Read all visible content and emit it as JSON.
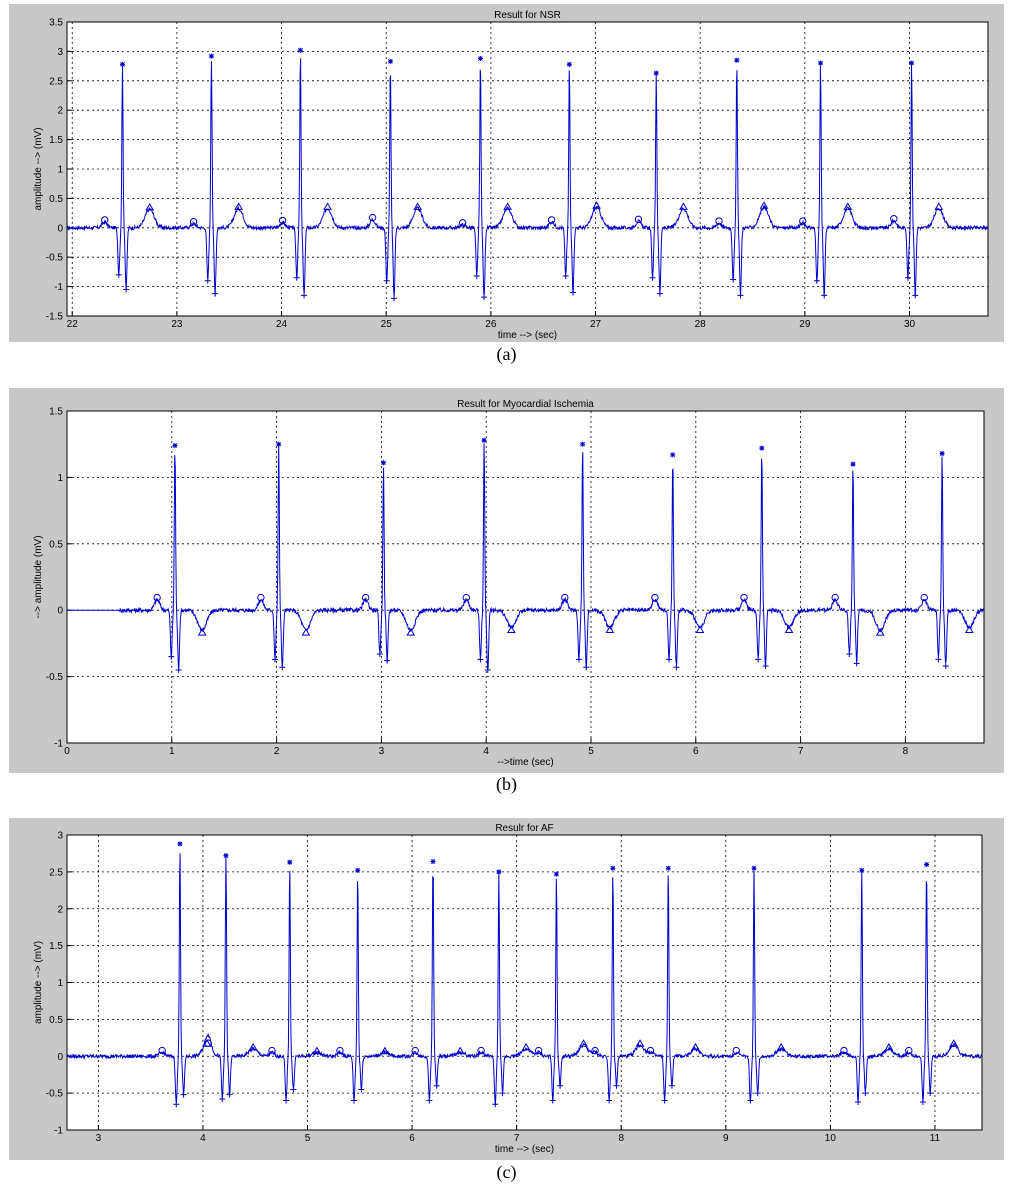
{
  "chart_data": [
    {
      "type": "line",
      "title": "Result for NSR",
      "xlabel": "time --> (sec)",
      "ylabel": "amplitude --> (mV)",
      "caption": "(a)",
      "xlim": [
        21.95,
        30.75
      ],
      "ylim": [
        -1.5,
        3.5
      ],
      "xticks": [
        22,
        23,
        24,
        25,
        26,
        27,
        28,
        29,
        30
      ],
      "yticks": [
        -1.5,
        -1,
        -0.5,
        0,
        0.5,
        1,
        1.5,
        2,
        2.5,
        3,
        3.5
      ],
      "grid": true,
      "line_color": "#0000cc",
      "beats": [
        {
          "t": 22.48,
          "r": 2.78,
          "s": -1.05,
          "q": -0.8,
          "p": 0.1,
          "tw": 0.32
        },
        {
          "t": 23.33,
          "r": 2.92,
          "s": -1.12,
          "q": -0.9,
          "p": 0.07,
          "tw": 0.33
        },
        {
          "t": 24.18,
          "r": 3.02,
          "s": -1.15,
          "q": -0.85,
          "p": 0.09,
          "tw": 0.33
        },
        {
          "t": 25.04,
          "r": 2.83,
          "s": -1.2,
          "q": -0.9,
          "p": 0.14,
          "tw": 0.33
        },
        {
          "t": 25.9,
          "r": 2.88,
          "s": -1.18,
          "q": -0.82,
          "p": 0.05,
          "tw": 0.33
        },
        {
          "t": 26.75,
          "r": 2.78,
          "s": -1.1,
          "q": -0.82,
          "p": 0.1,
          "tw": 0.35
        },
        {
          "t": 27.58,
          "r": 2.63,
          "s": -1.12,
          "q": -0.85,
          "p": 0.11,
          "tw": 0.33
        },
        {
          "t": 28.35,
          "r": 2.85,
          "s": -1.15,
          "q": -0.88,
          "p": 0.08,
          "tw": 0.35
        },
        {
          "t": 29.15,
          "r": 2.8,
          "s": -1.15,
          "q": -0.9,
          "p": 0.08,
          "tw": 0.33
        },
        {
          "t": 30.02,
          "r": 2.8,
          "s": -1.15,
          "q": -0.85,
          "p": 0.12,
          "tw": 0.33
        }
      ]
    },
    {
      "type": "line",
      "title": "Result for Myocardial Ischemia",
      "xlabel": "-->time (sec)",
      "ylabel": "--> amplitude (mV)",
      "caption": "(b)",
      "xlim": [
        0,
        8.75
      ],
      "ylim": [
        -1,
        1.5
      ],
      "xticks": [
        0,
        1,
        2,
        3,
        4,
        5,
        6,
        7,
        8
      ],
      "yticks": [
        -1,
        -0.5,
        0,
        0.5,
        1,
        1.5
      ],
      "grid": true,
      "line_color": "#0000cc",
      "flat_until": 0.5,
      "beats": [
        {
          "t": 1.03,
          "r": 1.24,
          "s": -0.45,
          "q": -0.35,
          "p": 0.08,
          "tw": -0.15
        },
        {
          "t": 2.02,
          "r": 1.25,
          "s": -0.43,
          "q": -0.37,
          "p": 0.08,
          "tw": -0.15
        },
        {
          "t": 3.02,
          "r": 1.11,
          "s": -0.38,
          "q": -0.33,
          "p": 0.08,
          "tw": -0.15
        },
        {
          "t": 3.98,
          "r": 1.28,
          "s": -0.45,
          "q": -0.37,
          "p": 0.08,
          "tw": -0.13
        },
        {
          "t": 4.92,
          "r": 1.25,
          "s": -0.43,
          "q": -0.37,
          "p": 0.08,
          "tw": -0.13
        },
        {
          "t": 5.78,
          "r": 1.17,
          "s": -0.43,
          "q": -0.37,
          "p": 0.08,
          "tw": -0.13
        },
        {
          "t": 6.63,
          "r": 1.22,
          "s": -0.42,
          "q": -0.37,
          "p": 0.08,
          "tw": -0.13
        },
        {
          "t": 7.5,
          "r": 1.1,
          "s": -0.4,
          "q": -0.33,
          "p": 0.08,
          "tw": -0.15
        },
        {
          "t": 8.35,
          "r": 1.18,
          "s": -0.42,
          "q": -0.37,
          "p": 0.08,
          "tw": -0.13
        }
      ]
    },
    {
      "type": "line",
      "title": "Resulr for AF",
      "xlabel": "time --> (sec)",
      "ylabel": "amplitude --> (mV)",
      "caption": "(c)",
      "xlim": [
        2.7,
        11.45
      ],
      "ylim": [
        -1,
        3
      ],
      "xticks": [
        3,
        4,
        5,
        6,
        7,
        8,
        9,
        10,
        11
      ],
      "yticks": [
        -1,
        -0.5,
        0,
        0.5,
        1,
        1.5,
        2,
        2.5,
        3
      ],
      "grid": true,
      "line_color": "#0000cc",
      "beats": [
        {
          "t": 3.78,
          "r": 2.88,
          "s": -0.52,
          "q": -0.65,
          "p": 0.05,
          "tw": 0.15
        },
        {
          "t": 4.22,
          "r": 2.72,
          "s": -0.52,
          "q": -0.58,
          "p": 0.15,
          "tw": 0.1
        },
        {
          "t": 4.83,
          "r": 2.63,
          "s": -0.45,
          "q": -0.6,
          "p": 0.05,
          "tw": 0.05
        },
        {
          "t": 5.48,
          "r": 2.52,
          "s": -0.45,
          "q": -0.6,
          "p": 0.05,
          "tw": 0.05
        },
        {
          "t": 6.2,
          "r": 2.64,
          "s": -0.4,
          "q": -0.6,
          "p": 0.05,
          "tw": 0.05
        },
        {
          "t": 6.83,
          "r": 2.5,
          "s": -0.5,
          "q": -0.65,
          "p": 0.05,
          "tw": 0.1
        },
        {
          "t": 7.38,
          "r": 2.47,
          "s": -0.4,
          "q": -0.6,
          "p": 0.05,
          "tw": 0.15
        },
        {
          "t": 7.92,
          "r": 2.55,
          "s": -0.4,
          "q": -0.6,
          "p": 0.05,
          "tw": 0.15
        },
        {
          "t": 8.45,
          "r": 2.55,
          "s": -0.4,
          "q": -0.6,
          "p": 0.05,
          "tw": 0.1
        },
        {
          "t": 9.27,
          "r": 2.55,
          "s": -0.5,
          "q": -0.6,
          "p": 0.05,
          "tw": 0.1
        },
        {
          "t": 10.3,
          "r": 2.52,
          "s": -0.5,
          "q": -0.62,
          "p": 0.05,
          "tw": 0.1
        },
        {
          "t": 10.92,
          "r": 2.6,
          "s": -0.5,
          "q": -0.62,
          "p": 0.05,
          "tw": 0.15
        }
      ]
    }
  ]
}
